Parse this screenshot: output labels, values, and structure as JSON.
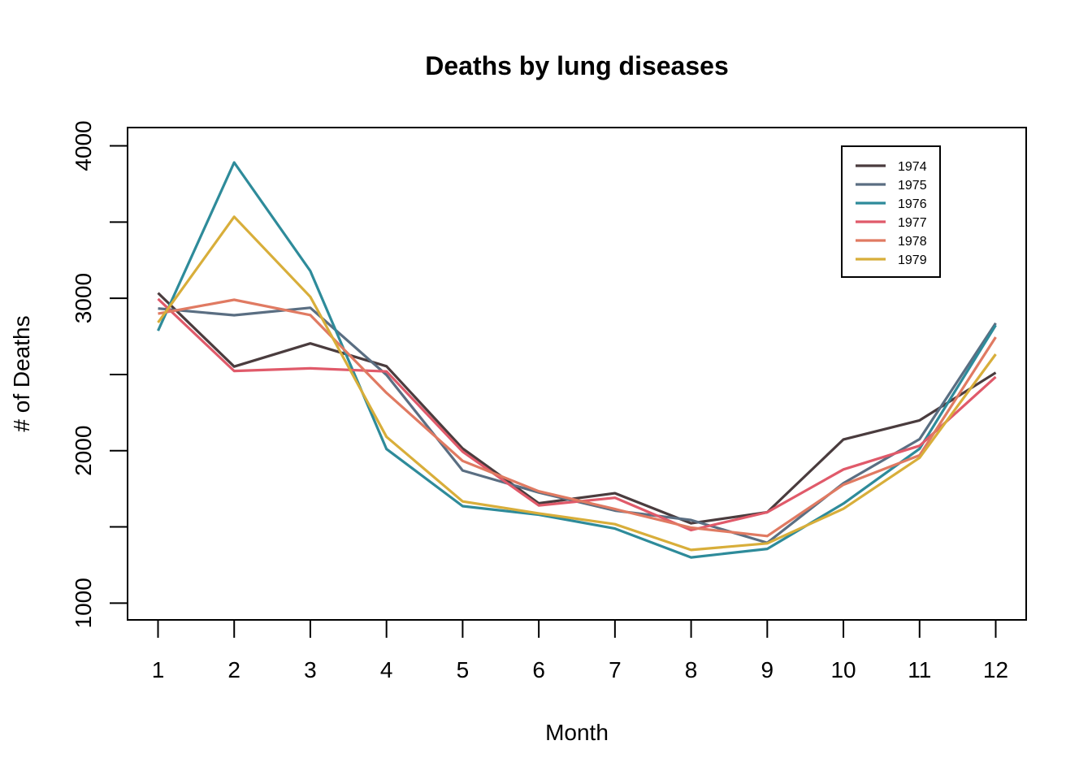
{
  "chart_data": {
    "type": "line",
    "title": "Deaths by lung diseases",
    "xlabel": "Month",
    "ylabel": "# of Deaths",
    "categories": [
      "1",
      "2",
      "3",
      "4",
      "5",
      "6",
      "7",
      "8",
      "9",
      "10",
      "11",
      "12"
    ],
    "x": [
      1,
      2,
      3,
      4,
      5,
      6,
      7,
      8,
      9,
      10,
      11,
      12
    ],
    "xlim": [
      0.6,
      12.4
    ],
    "ylim": [
      890,
      4120
    ],
    "yticks": [
      1000,
      2000,
      3000,
      4000
    ],
    "grid": false,
    "legend_position": "top-right",
    "series": [
      {
        "name": "1974",
        "color": "#4a3c3e",
        "values": [
          3035,
          2552,
          2704,
          2554,
          2014,
          1655,
          1721,
          1524,
          1596,
          2074,
          2199,
          2512
        ]
      },
      {
        "name": "1975",
        "color": "#5a6e82",
        "values": [
          2933,
          2889,
          2938,
          2497,
          1870,
          1726,
          1607,
          1545,
          1396,
          1787,
          2076,
          2837
        ]
      },
      {
        "name": "1976",
        "color": "#2e8b9a",
        "values": [
          2787,
          3891,
          3179,
          2011,
          1636,
          1580,
          1489,
          1300,
          1356,
          1653,
          2013,
          2823
        ]
      },
      {
        "name": "1977",
        "color": "#e05a6a",
        "values": [
          2996,
          2523,
          2540,
          2520,
          1994,
          1641,
          1691,
          1479,
          1596,
          1877,
          2032,
          2484
        ]
      },
      {
        "name": "1978",
        "color": "#e07a62",
        "values": [
          2899,
          2990,
          2890,
          2379,
          1933,
          1734,
          1617,
          1495,
          1440,
          1777,
          1970,
          2745
        ]
      },
      {
        "name": "1979",
        "color": "#d8ae3a",
        "values": [
          2841,
          3535,
          3010,
          2091,
          1667,
          1589,
          1518,
          1349,
          1392,
          1619,
          1954,
          2633
        ]
      }
    ]
  }
}
